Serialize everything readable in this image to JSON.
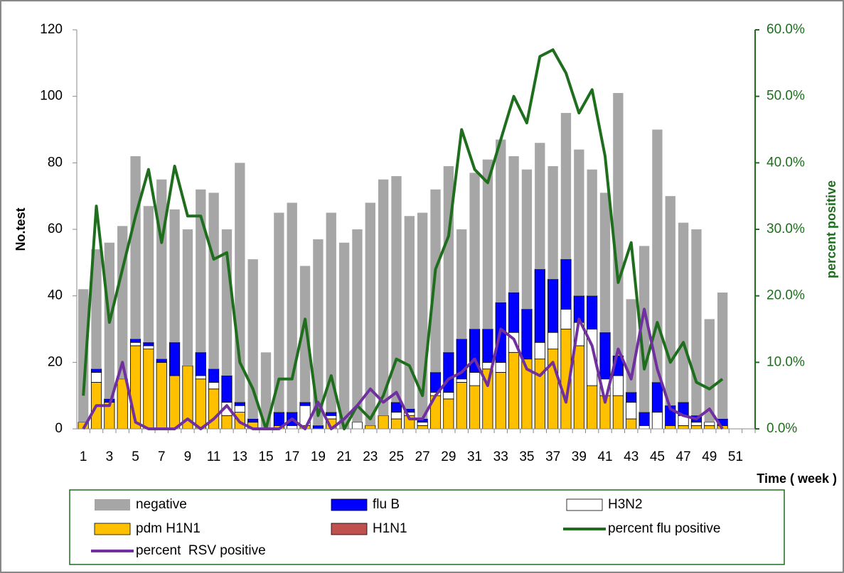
{
  "chart_data": {
    "type": "bar",
    "x_label": "Time ( week )",
    "y_label": "No.test",
    "y2_label": "percent positive",
    "categories": [
      1,
      null,
      3,
      null,
      5,
      null,
      7,
      null,
      9,
      null,
      11,
      null,
      13,
      null,
      15,
      null,
      17,
      null,
      19,
      null,
      21,
      null,
      23,
      null,
      25,
      null,
      27,
      null,
      29,
      null,
      31,
      null,
      33,
      null,
      35,
      null,
      37,
      null,
      39,
      null,
      41,
      null,
      43,
      null,
      45,
      null,
      47,
      null,
      49,
      null,
      51,
      null
    ],
    "ylim": [
      0,
      120
    ],
    "yticks": [
      0,
      20,
      40,
      60,
      80,
      100,
      120
    ],
    "y2lim": [
      0,
      60
    ],
    "y2ticks": [
      {
        "value": 0,
        "label": "0.0%"
      },
      {
        "value": 10,
        "label": "10.0%"
      },
      {
        "value": 20,
        "label": "20.0%"
      },
      {
        "value": 30,
        "label": "30.0%"
      },
      {
        "value": 40,
        "label": "40.0%"
      },
      {
        "value": 50,
        "label": "50.0%"
      },
      {
        "value": 60,
        "label": "60.0%"
      }
    ],
    "grid": false,
    "legend": "bottom",
    "series": [
      {
        "name": "negative",
        "color": "#a6a6a6",
        "type": "bar",
        "values": [
          40,
          36,
          47,
          46,
          55,
          41,
          54,
          40,
          41,
          49,
          53,
          44,
          72,
          48,
          23,
          60,
          63,
          41,
          56,
          60,
          56,
          58,
          67,
          71,
          68,
          58,
          62,
          55,
          56,
          33,
          47,
          51,
          49,
          41,
          42,
          38,
          34,
          44,
          44,
          38,
          42,
          79,
          28,
          50,
          76,
          63,
          54,
          56,
          31,
          38,
          null,
          null
        ]
      },
      {
        "name": "flu B",
        "color": "#0000ff",
        "type": "bar",
        "values": [
          0,
          1,
          1,
          0,
          1,
          1,
          1,
          10,
          0,
          7,
          4,
          8,
          1,
          1,
          0,
          4,
          4,
          1,
          1,
          1,
          0,
          0,
          0,
          0,
          3,
          1,
          1,
          6,
          12,
          12,
          13,
          10,
          18,
          12,
          15,
          22,
          16,
          15,
          8,
          10,
          14,
          6,
          3,
          4,
          9,
          6,
          4,
          2,
          0,
          2,
          null,
          null
        ]
      },
      {
        "name": "H3N2",
        "color": "#ffffff",
        "type": "bar",
        "values": [
          0,
          3,
          0,
          0,
          1,
          1,
          0,
          0,
          0,
          1,
          2,
          4,
          2,
          0,
          0,
          0,
          1,
          6,
          0,
          1,
          0,
          2,
          0,
          0,
          2,
          1,
          1,
          1,
          2,
          1,
          4,
          2,
          3,
          6,
          0,
          5,
          5,
          6,
          7,
          17,
          5,
          6,
          5,
          1,
          5,
          0,
          3,
          1,
          1,
          0,
          null,
          null
        ]
      },
      {
        "name": "pdm H1N1",
        "color": "#ffc000",
        "type": "bar",
        "values": [
          2,
          14,
          8,
          15,
          25,
          24,
          20,
          16,
          19,
          15,
          12,
          4,
          5,
          2,
          0,
          1,
          0,
          1,
          0,
          3,
          0,
          0,
          1,
          4,
          3,
          4,
          1,
          10,
          9,
          14,
          13,
          18,
          17,
          23,
          21,
          21,
          24,
          30,
          25,
          13,
          10,
          10,
          3,
          0,
          0,
          1,
          1,
          1,
          1,
          1,
          null,
          null
        ]
      },
      {
        "name": "H1N1",
        "color": "#c0504d",
        "type": "bar",
        "values": [
          0,
          0,
          0,
          0,
          0,
          0,
          0,
          0,
          0,
          0,
          0,
          0,
          0,
          0,
          0,
          0,
          0,
          0,
          0,
          0,
          0,
          0,
          0,
          0,
          0,
          0,
          0,
          0,
          0,
          0,
          0,
          0,
          0,
          0,
          0,
          0,
          0,
          0,
          0,
          0,
          0,
          0,
          0,
          0,
          0,
          0,
          0,
          0,
          0,
          0,
          null,
          null
        ]
      },
      {
        "name": "percent flu positive",
        "color": "#1e6e1e",
        "type": "line",
        "axis": "y2",
        "values": [
          5,
          33.5,
          16,
          24,
          32,
          39,
          28,
          39.5,
          32,
          32,
          25.5,
          26.5,
          10,
          6,
          0,
          7.5,
          7.5,
          16.5,
          2,
          8,
          0,
          3.5,
          1.5,
          5,
          10.5,
          9.5,
          5,
          24,
          29,
          45,
          39,
          37,
          43.5,
          50,
          46,
          56,
          57,
          53.5,
          47.5,
          51,
          41,
          22,
          28,
          9,
          16,
          10,
          13,
          7,
          6,
          7.5,
          null,
          null
        ]
      },
      {
        "name": "percent  RSV positive",
        "color": "#7030a0",
        "type": "line",
        "axis": "y2",
        "values": [
          0,
          3.5,
          3.5,
          10,
          1,
          0,
          0,
          0,
          1.5,
          0,
          1.5,
          3.5,
          1,
          0,
          0,
          0,
          1.5,
          0,
          4,
          0,
          1.5,
          3.5,
          6,
          4,
          5.5,
          1.5,
          1.5,
          5,
          7.5,
          8.5,
          10.5,
          6.5,
          15,
          13.5,
          9,
          8,
          10,
          4,
          16.5,
          12.5,
          4,
          12,
          7.5,
          18,
          9,
          3,
          2,
          1.5,
          3,
          0,
          null,
          null
        ]
      }
    ]
  }
}
